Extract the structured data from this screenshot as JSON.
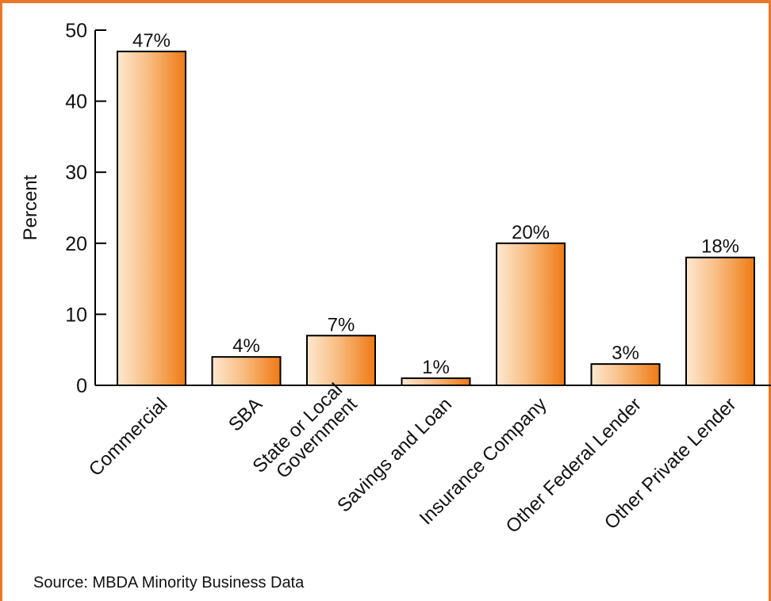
{
  "chart_data": {
    "type": "bar",
    "categories": [
      "Commercial",
      "SBA",
      "State or Local Government",
      "Savings and Loan",
      "Insurance Company",
      "Other Federal Lender",
      "Other Private Lender"
    ],
    "category_lines": [
      [
        "Commercial"
      ],
      [
        "SBA"
      ],
      [
        "State or Local",
        "Government"
      ],
      [
        "Savings and Loan"
      ],
      [
        "Insurance Company"
      ],
      [
        "Other Federal Lender"
      ],
      [
        "Other Private Lender"
      ]
    ],
    "values": [
      47,
      4,
      7,
      1,
      20,
      3,
      18
    ],
    "data_labels": [
      "47%",
      "4%",
      "7%",
      "1%",
      "20%",
      "3%",
      "18%"
    ],
    "title": "",
    "xlabel": "",
    "ylabel": "Percent",
    "ylim": [
      0,
      50
    ],
    "yticks": [
      0,
      10,
      20,
      30,
      40,
      50
    ],
    "grid": false,
    "legend": "none",
    "colors": {
      "bar_light": "#fde8d0",
      "bar_dark": "#ee7a14",
      "frame": "#e9782a",
      "axis": "#000000"
    }
  },
  "source": "Source: MBDA Minority Business Data"
}
